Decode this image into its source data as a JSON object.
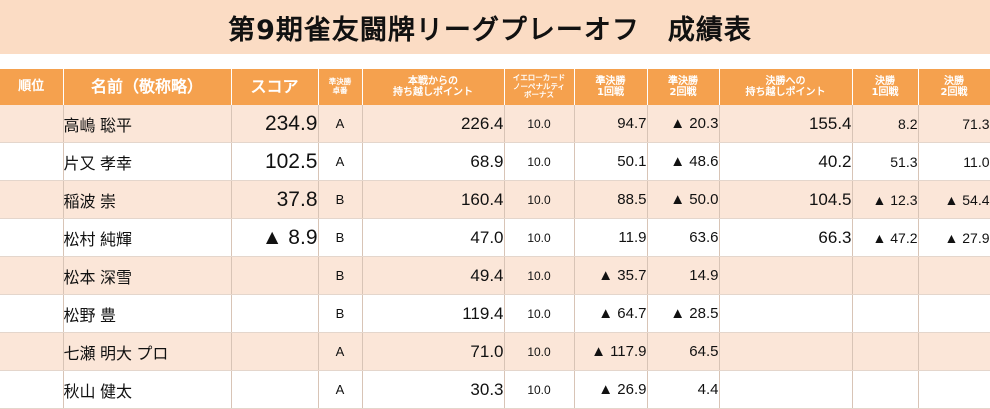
{
  "title": "第9期雀友闘牌リーグプレーオフ　成績表",
  "headers": {
    "rank": "順位",
    "name": "名前（敬称略）",
    "score": "スコア",
    "seed": "準決勝\n卓番",
    "carry": "本戦からの\n持ち越しポイント",
    "yellow": "イエローカード\nノーペナルティ\nボーナス",
    "semi1": "準決勝\n1回戦",
    "semi2": "準決勝\n2回戦",
    "final_carry": "決勝への\n持ち越しポイント",
    "final1": "決勝\n1回戦",
    "final2": "決勝\n2回戦"
  },
  "rows": [
    {
      "rank": "",
      "name": "高嶋 聡平",
      "score": "234.9",
      "seed": "A",
      "carry": "226.4",
      "yellow": "10.0",
      "semi1": "94.7",
      "semi2": "▲ 20.3",
      "final_carry": "155.4",
      "final1": "8.2",
      "final2": "71.3"
    },
    {
      "rank": "",
      "name": "片又 孝幸",
      "score": "102.5",
      "seed": "A",
      "carry": "68.9",
      "yellow": "10.0",
      "semi1": "50.1",
      "semi2": "▲ 48.6",
      "final_carry": "40.2",
      "final1": "51.3",
      "final2": "11.0"
    },
    {
      "rank": "",
      "name": "稲波 崇",
      "score": "37.8",
      "seed": "B",
      "carry": "160.4",
      "yellow": "10.0",
      "semi1": "88.5",
      "semi2": "▲ 50.0",
      "final_carry": "104.5",
      "final1": "▲ 12.3",
      "final2": "▲ 54.4"
    },
    {
      "rank": "",
      "name": "松村 純輝",
      "score": "▲ 8.9",
      "seed": "B",
      "carry": "47.0",
      "yellow": "10.0",
      "semi1": "11.9",
      "semi2": "63.6",
      "final_carry": "66.3",
      "final1": "▲ 47.2",
      "final2": "▲ 27.9"
    },
    {
      "rank": "",
      "name": "松本 深雪",
      "score": "",
      "seed": "B",
      "carry": "49.4",
      "yellow": "10.0",
      "semi1": "▲ 35.7",
      "semi2": "14.9",
      "final_carry": "",
      "final1": "",
      "final2": ""
    },
    {
      "rank": "",
      "name": "松野 豊",
      "score": "",
      "seed": "B",
      "carry": "119.4",
      "yellow": "10.0",
      "semi1": "▲ 64.7",
      "semi2": "▲ 28.5",
      "final_carry": "",
      "final1": "",
      "final2": ""
    },
    {
      "rank": "",
      "name": "七瀬 明大 プロ",
      "score": "",
      "seed": "A",
      "carry": "71.0",
      "yellow": "10.0",
      "semi1": "▲ 117.9",
      "semi2": "64.5",
      "final_carry": "",
      "final1": "",
      "final2": ""
    },
    {
      "rank": "",
      "name": "秋山 健太",
      "score": "",
      "seed": "A",
      "carry": "30.3",
      "yellow": "10.0",
      "semi1": "▲ 26.9",
      "semi2": "4.4",
      "final_carry": "",
      "final1": "",
      "final2": ""
    }
  ]
}
